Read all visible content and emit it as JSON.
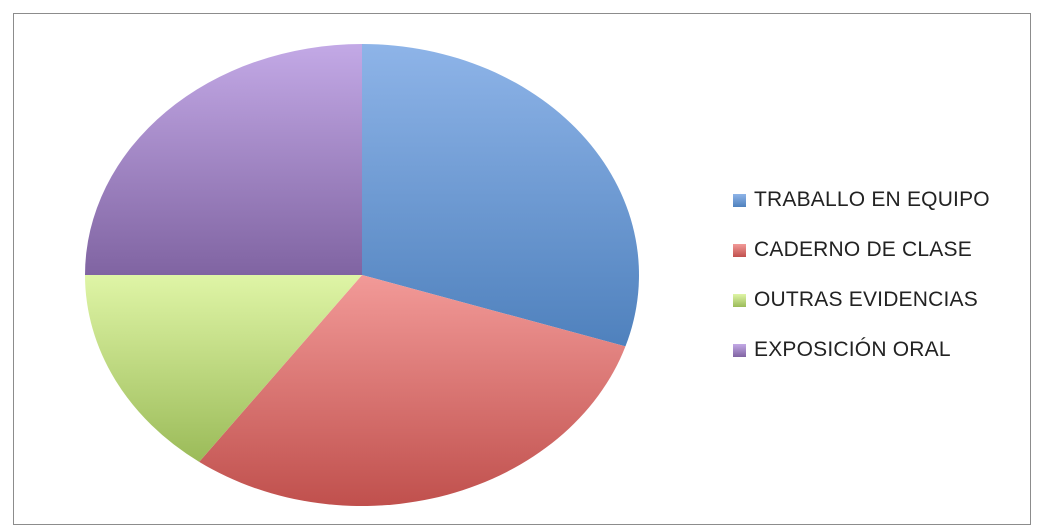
{
  "chart_data": {
    "type": "pie",
    "title": "",
    "start_angle": "12 o'clock",
    "direction": "clockwise",
    "legend_position": "right",
    "slices": [
      {
        "label": "TRABALLO EN EQUIPO",
        "value": 30,
        "color": "#4f81bd",
        "light": "#8eb4e8"
      },
      {
        "label": "CADERNO DE CLASE",
        "value": 30,
        "color": "#c0504d",
        "light": "#f29a98"
      },
      {
        "label": "OUTRAS EVIDENCIAS",
        "value": 15,
        "color": "#9bbb59",
        "light": "#dff5a6"
      },
      {
        "label": "EXPOSICIÓN ORAL",
        "value": 25,
        "color": "#8064a2",
        "light": "#c3a9e6"
      }
    ]
  }
}
